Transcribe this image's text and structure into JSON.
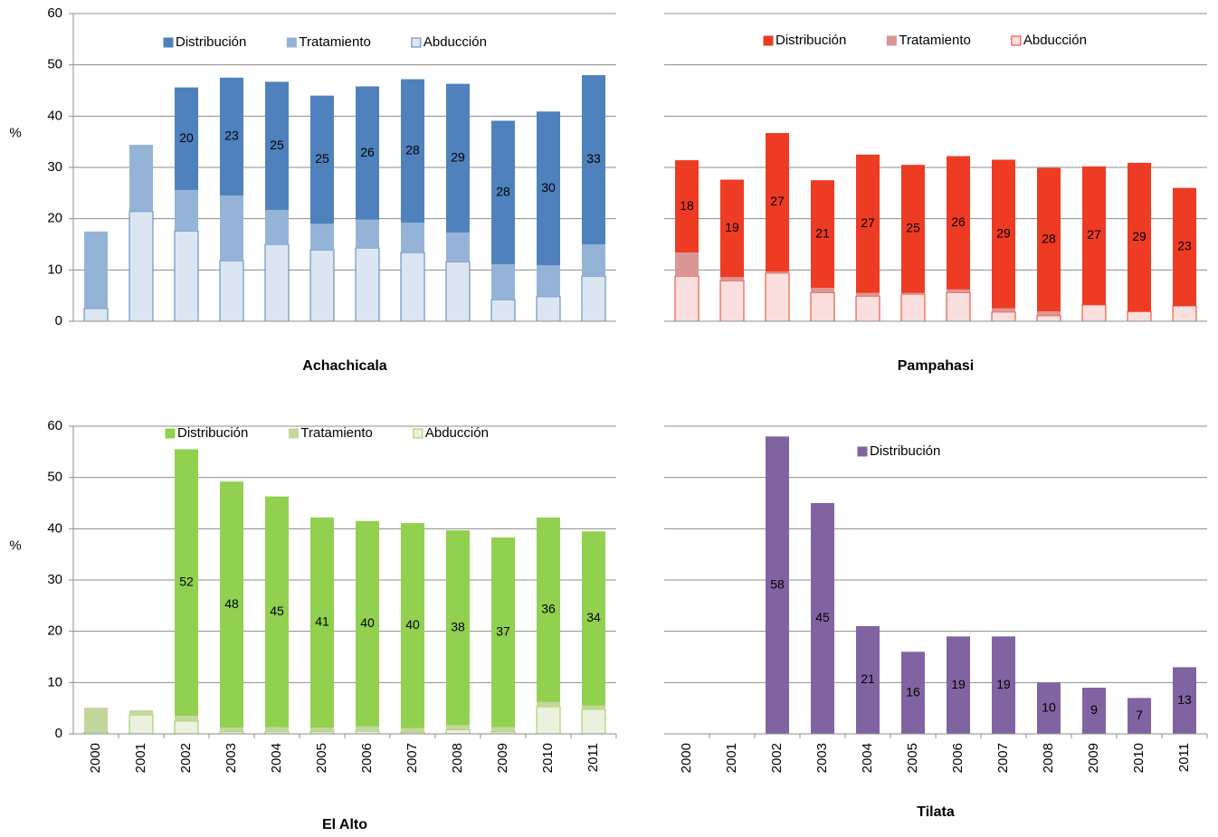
{
  "chart_data": [
    {
      "type": "bar",
      "stacked": true,
      "title": "Achachicala",
      "ylabel": "%",
      "ylim": [
        0,
        60
      ],
      "yticks": [
        0,
        10,
        20,
        30,
        40,
        50,
        60
      ],
      "show_ytick_labels": true,
      "grid": true,
      "legend": "top",
      "series": [
        {
          "name": "Distribución",
          "color": "#4f81bd",
          "data_labels": true,
          "values": [
            null,
            null,
            20,
            23,
            25,
            25,
            26,
            28,
            29,
            28,
            30,
            33
          ]
        },
        {
          "name": "Tratamiento",
          "color": "#95b3d7",
          "values": [
            15,
            13,
            8,
            12.7,
            6.7,
            5.1,
            5.5,
            5.8,
            5.7,
            6.9,
            6.1,
            6.2
          ]
        },
        {
          "name": "Abducción",
          "color": "#dce6f2",
          "border": "#4f81bd",
          "values": [
            2.5,
            21.4,
            17.6,
            11.8,
            15,
            13.9,
            14.3,
            13.4,
            11.6,
            4.2,
            4.8,
            8.8
          ]
        }
      ]
    },
    {
      "type": "bar",
      "stacked": true,
      "title": "Pampahasi",
      "ylim": [
        0,
        60
      ],
      "yticks": [
        0,
        10,
        20,
        30,
        40,
        50,
        60
      ],
      "show_ytick_labels": false,
      "grid": true,
      "legend": "top",
      "series": [
        {
          "name": "Distribución",
          "color": "#ee3b24",
          "data_labels": true,
          "values": [
            18,
            19,
            27,
            21,
            27,
            25,
            26,
            29,
            28,
            27,
            29,
            23
          ]
        },
        {
          "name": "Tratamiento",
          "color": "#d99694",
          "values": [
            4.6,
            0.7,
            0.3,
            0.9,
            0.6,
            0.2,
            0.6,
            0.7,
            0.8,
            0,
            0,
            0
          ]
        },
        {
          "name": "Abducción",
          "color": "#f9e0de",
          "border": "#ee3b24",
          "values": [
            8.8,
            7.9,
            9.4,
            5.6,
            4.9,
            5.3,
            5.6,
            1.8,
            1.1,
            3.2,
            1.9,
            3
          ]
        }
      ]
    },
    {
      "type": "bar",
      "stacked": true,
      "title": "El Alto",
      "ylabel": "%",
      "categories": [
        "2000",
        "2001",
        "2002",
        "2003",
        "2004",
        "2005",
        "2006",
        "2007",
        "2008",
        "2009",
        "2010",
        "2011"
      ],
      "ylim": [
        0,
        60
      ],
      "yticks": [
        0,
        10,
        20,
        30,
        40,
        50,
        60
      ],
      "show_ytick_labels": true,
      "grid": true,
      "legend": "top",
      "series": [
        {
          "name": "Distribución",
          "color": "#92d050",
          "data_labels": true,
          "values": [
            null,
            null,
            52,
            48,
            45,
            41,
            40,
            40,
            38,
            37,
            36,
            34
          ]
        },
        {
          "name": "Tratamiento",
          "color": "#c3d69b",
          "values": [
            4.8,
            0.9,
            1,
            0.8,
            0.9,
            0.8,
            1,
            0.8,
            0.9,
            0.9,
            0.9,
            0.7
          ]
        },
        {
          "name": "Abducción",
          "color": "#ebf1de",
          "border": "#92d050",
          "values": [
            0.3,
            3.7,
            2.5,
            0.4,
            0.4,
            0.4,
            0.5,
            0.3,
            0.8,
            0.4,
            5.3,
            4.8
          ]
        }
      ]
    },
    {
      "type": "bar",
      "stacked": true,
      "title": "Tilata",
      "categories": [
        "2000",
        "2001",
        "2002",
        "2003",
        "2004",
        "2005",
        "2006",
        "2007",
        "2008",
        "2009",
        "2010",
        "2011"
      ],
      "ylim": [
        0,
        60
      ],
      "yticks": [
        0,
        10,
        20,
        30,
        40,
        50,
        60
      ],
      "show_ytick_labels": false,
      "grid": true,
      "legend": "top",
      "series": [
        {
          "name": "Distribución",
          "color": "#8064a2",
          "data_labels": true,
          "values": [
            null,
            null,
            58,
            45,
            21,
            16,
            19,
            19,
            10,
            9,
            7,
            13
          ]
        }
      ]
    }
  ]
}
